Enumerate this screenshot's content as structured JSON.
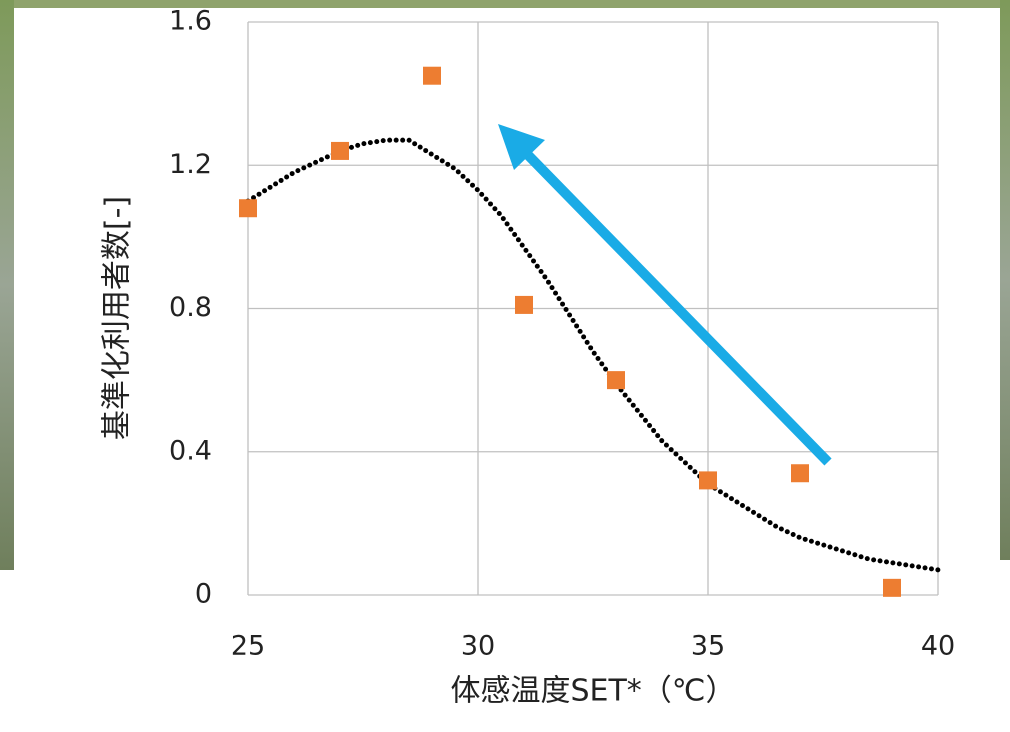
{
  "chart_data": {
    "type": "scatter",
    "xlabel": "体感温度SET*（℃）",
    "ylabel": "基準化利用者数[-]",
    "x": [
      25,
      27,
      29,
      31,
      33,
      35,
      37,
      39
    ],
    "values": [
      1.08,
      1.24,
      1.45,
      0.81,
      0.6,
      0.32,
      0.34,
      0.02
    ],
    "color": "#ed7d31",
    "marker": "square",
    "curve": {
      "type": "line",
      "color": "#000000",
      "x": [
        25,
        25.5,
        26,
        26.5,
        27,
        27.5,
        28,
        28.5,
        29,
        29.5,
        30,
        30.5,
        31,
        31.5,
        32,
        32.5,
        33,
        33.5,
        34,
        34.5,
        35,
        35.5,
        36,
        36.5,
        37,
        37.5,
        38,
        38.5,
        39,
        39.5,
        40
      ],
      "values": [
        1.1,
        1.14,
        1.18,
        1.21,
        1.24,
        1.26,
        1.27,
        1.27,
        1.23,
        1.19,
        1.13,
        1.06,
        0.97,
        0.88,
        0.78,
        0.68,
        0.59,
        0.51,
        0.43,
        0.37,
        0.31,
        0.27,
        0.23,
        0.19,
        0.16,
        0.14,
        0.12,
        0.1,
        0.09,
        0.08,
        0.07
      ]
    },
    "xlim": [
      25,
      40
    ],
    "xticks": [
      25,
      30,
      35,
      40
    ],
    "ylim": [
      0,
      1.6
    ],
    "yticks": [
      0,
      0.4,
      0.8,
      1.2,
      1.6
    ],
    "grid": true
  }
}
